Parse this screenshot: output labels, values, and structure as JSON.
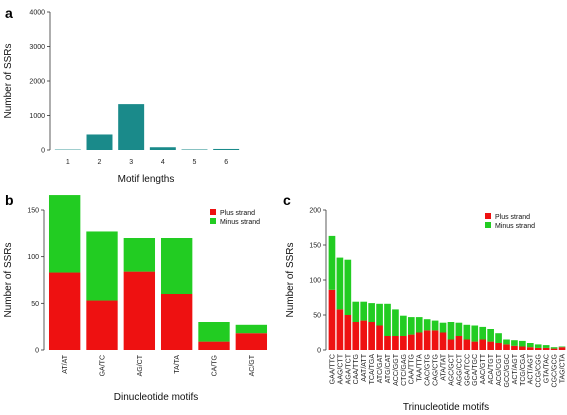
{
  "colors": {
    "plus": "#ee1111",
    "minus": "#22cc22",
    "teal": "#1a8a8a"
  },
  "chart_data": [
    {
      "panel": "a",
      "type": "bar",
      "categories": [
        "1",
        "2",
        "3",
        "4",
        "5",
        "6"
      ],
      "values": [
        12,
        450,
        1330,
        80,
        15,
        30
      ],
      "xlabel": "Motif lengths",
      "ylabel": "Number of SSRs",
      "ylim": [
        0,
        4000
      ],
      "yticks": [
        "0",
        "1000",
        "2000",
        "3000",
        "4000"
      ]
    },
    {
      "panel": "b",
      "type": "bar",
      "stacked": true,
      "categories": [
        "AT/AT",
        "GA/TC",
        "AG/CT",
        "TA/TA",
        "CA/TG",
        "AC/GT"
      ],
      "series": [
        {
          "name": "Plus strand",
          "values": [
            83,
            53,
            84,
            60,
            9,
            18
          ]
        },
        {
          "name": "Minus strand",
          "values": [
            83,
            74,
            36,
            60,
            21,
            9
          ]
        }
      ],
      "xlabel": "Dinucleotide motifs",
      "ylabel": "Number of SSRs",
      "ylim": [
        0,
        150
      ],
      "yticks": [
        "0",
        "50",
        "100",
        "150"
      ],
      "legend": "top-right"
    },
    {
      "panel": "c",
      "type": "bar",
      "stacked": true,
      "categories": [
        "GAA/TTC",
        "AAG/CTT",
        "AGA/TCT",
        "CAA/TTG",
        "AAT/ATT",
        "TCA/TGA",
        "ATC/GAT",
        "ATG/CAT",
        "ACC/GGT",
        "CTC/GAG",
        "CAA/TTG",
        "TAA/TTA",
        "CAC/GTG",
        "CAG/CTG",
        "ATA/TAT",
        "AGC/GCT",
        "AGG/CCT",
        "GGA/TCC",
        "GCA/TGC",
        "AAC/GTT",
        "ACA/TGT",
        "ACG/CGT",
        "GCC/GGC",
        "ACT/AGT",
        "TCG/CGA",
        "ACT/AGT",
        "CCG/CGG",
        "GTA/TAC",
        "CGC/GCG",
        "TAG/CTA"
      ],
      "series": [
        {
          "name": "Plus strand",
          "values": [
            86,
            58,
            50,
            40,
            42,
            40,
            35,
            20,
            20,
            20,
            22,
            25,
            28,
            28,
            25,
            15,
            20,
            15,
            12,
            15,
            12,
            10,
            8,
            6,
            5,
            4,
            3,
            3,
            2,
            4
          ]
        },
        {
          "name": "Minus strand",
          "values": [
            77,
            74,
            79,
            29,
            27,
            27,
            31,
            46,
            38,
            29,
            25,
            22,
            16,
            14,
            14,
            25,
            19,
            21,
            23,
            18,
            18,
            14,
            7,
            8,
            8,
            6,
            5,
            4,
            2,
            1
          ]
        }
      ],
      "xlabel": "Trinucleotide motifs",
      "ylabel": "Number of SSRs",
      "ylim": [
        0,
        200
      ],
      "yticks": [
        "0",
        "50",
        "100",
        "150",
        "200"
      ],
      "legend": "top-right"
    }
  ]
}
